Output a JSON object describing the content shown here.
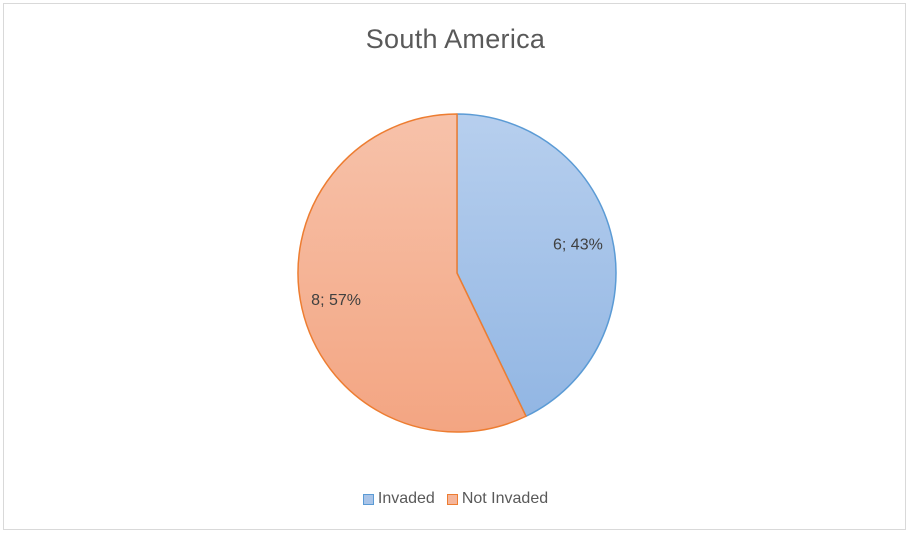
{
  "chart_data": {
    "type": "pie",
    "title": "South America",
    "categories": [
      "Invaded",
      "Not Invaded"
    ],
    "values": [
      6,
      8
    ],
    "percents": [
      43,
      57
    ],
    "data_labels": [
      "6; 43%",
      "8; 57%"
    ],
    "legend": {
      "placement": "bottom",
      "entries": [
        "Invaded",
        "Not Invaded"
      ]
    },
    "colors": {
      "fills": [
        "#a9c4e8",
        "#f5b59a"
      ],
      "borders": [
        "#5b9bd5",
        "#ed7d31"
      ]
    }
  }
}
